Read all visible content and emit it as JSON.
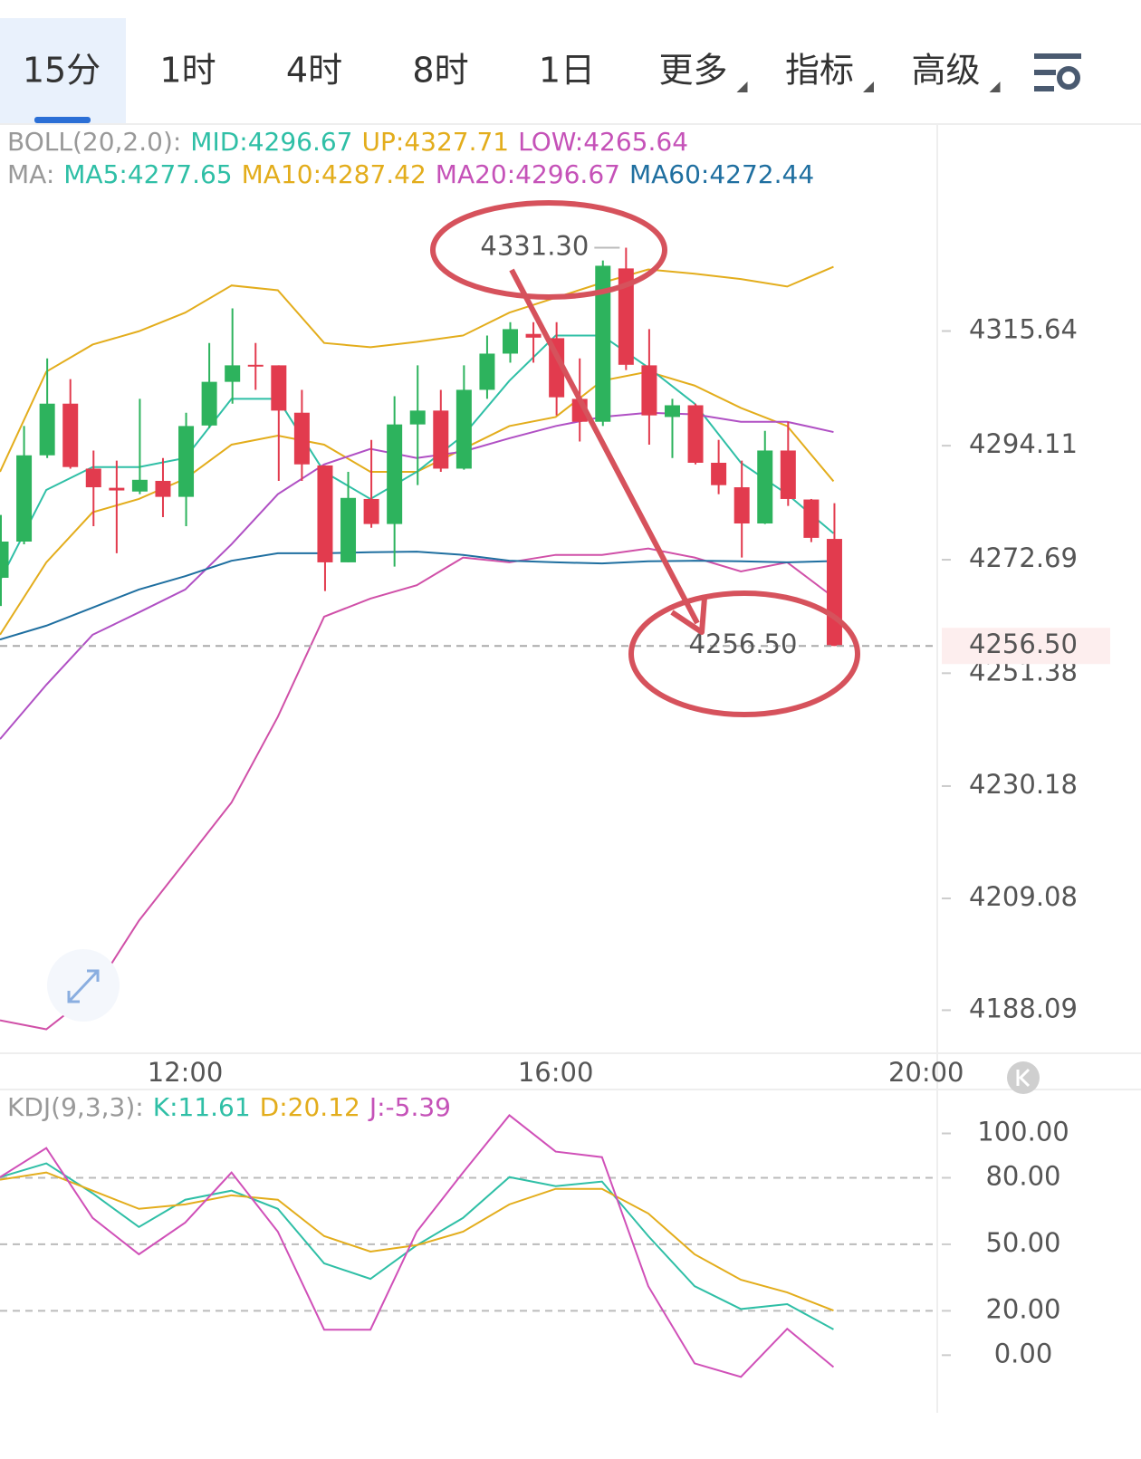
{
  "tabs": [
    "15分",
    "1时",
    "4时",
    "8时",
    "1日",
    "更多",
    "指标",
    "高级"
  ],
  "chart_data": {
    "type": "candlestick",
    "legend_boll": [
      {
        "text": "BOLL(20,2.0):",
        "color": "#999999"
      },
      {
        "text": "MID:4296.67",
        "color": "#2fbfa6"
      },
      {
        "text": "UP:4327.71",
        "color": "#e3ad1c"
      },
      {
        "text": "LOW:4265.64",
        "color": "#c552b8"
      }
    ],
    "legend_ma": [
      {
        "text": "MA:",
        "color": "#999999"
      },
      {
        "text": "MA5:4277.65",
        "color": "#2fbfa6"
      },
      {
        "text": "MA10:4287.42",
        "color": "#e3ad1c"
      },
      {
        "text": "MA20:4296.67",
        "color": "#c552b8"
      },
      {
        "text": "MA60:4272.44",
        "color": "#1f6fa0"
      }
    ],
    "xlim": [
      10,
      20.12
    ],
    "xticks": [
      {
        "value": 12,
        "label": "12:00"
      },
      {
        "value": 16,
        "label": "16:00"
      },
      {
        "value": 20,
        "label": "20:00"
      }
    ],
    "ylim": [
      4180,
      4354
    ],
    "yticks": [
      4315.64,
      4294.11,
      4272.69,
      4251.38,
      4230.18,
      4209.08,
      4188.09
    ],
    "up_color": "#2db35d",
    "down_color": "#e23b4e",
    "x": [
      10,
      10.25,
      10.5,
      10.75,
      11,
      11.25,
      11.5,
      11.75,
      12,
      12.25,
      12.5,
      12.75,
      13,
      13.25,
      13.5,
      13.75,
      14,
      14.25,
      14.5,
      14.75,
      15,
      15.25,
      15.5,
      15.75,
      16,
      16.25,
      16.5,
      16.75,
      17,
      17.25,
      17.5,
      17.75,
      18,
      18.25,
      18.5,
      18.75,
      19
    ],
    "open": [
      4269.3,
      4276.1,
      4292.3,
      4302.0,
      4289.8,
      4286.2,
      4285.5,
      4287.5,
      4284.5,
      4297.9,
      4306.1,
      4309.3,
      4309.2,
      4300.3,
      4290.4,
      4272.2,
      4284.1,
      4279.4,
      4298.1,
      4300.7,
      4289.8,
      4304.6,
      4311.4,
      4315.1,
      4314.3,
      4302.9,
      4298.6,
      4327.4,
      4309.2,
      4299.5,
      4301.7,
      4290.9,
      4286.3,
      4279.5,
      4293.2,
      4284.0,
      4276.6
    ],
    "high": [
      4281.1,
      4297.8,
      4310.5,
      4306.6,
      4293.2,
      4291.3,
      4302.9,
      4291.8,
      4300.3,
      4313.4,
      4319.9,
      4313.4,
      4309.2,
      4304.6,
      4290.4,
      4289.2,
      4295.2,
      4303.4,
      4309.2,
      4304.6,
      4309.2,
      4314.8,
      4317.3,
      4317.3,
      4317.3,
      4310.5,
      4328.9,
      4331.3,
      4316.0,
      4302.9,
      4302.0,
      4295.2,
      4291.3,
      4296.9,
      4298.6,
      4284.1,
      4283.3
    ],
    "low": [
      4264.0,
      4275.6,
      4291.8,
      4289.8,
      4279.0,
      4273.9,
      4285.0,
      4280.7,
      4279.0,
      4297.4,
      4302.0,
      4304.6,
      4287.5,
      4287.5,
      4266.8,
      4272.2,
      4278.7,
      4271.4,
      4286.7,
      4289.2,
      4289.6,
      4302.9,
      4309.7,
      4309.7,
      4299.8,
      4294.9,
      4297.8,
      4308.3,
      4294.3,
      4291.8,
      4290.6,
      4285.0,
      4273.1,
      4279.4,
      4282.8,
      4276.0,
      4256.5
    ],
    "close": [
      4276.1,
      4292.3,
      4302.0,
      4290.1,
      4286.3,
      4285.7,
      4287.7,
      4284.5,
      4297.8,
      4306.1,
      4309.2,
      4309.0,
      4300.7,
      4290.6,
      4272.2,
      4284.3,
      4279.4,
      4298.1,
      4300.7,
      4289.8,
      4304.6,
      4311.4,
      4316.0,
      4314.4,
      4303.2,
      4298.6,
      4327.9,
      4309.3,
      4299.8,
      4301.7,
      4290.9,
      4286.7,
      4279.5,
      4293.2,
      4284.1,
      4276.8,
      4256.5
    ],
    "line_x": [
      10,
      10.5,
      11,
      11.5,
      12,
      12.5,
      13,
      13.5,
      14,
      14.5,
      15,
      15.5,
      16,
      16.5,
      17,
      17.5,
      18,
      18.5,
      19
    ],
    "lines": [
      {
        "color": "#e3ad1c",
        "values": [
          4289.2,
          4308.0,
          4313.1,
          4315.6,
          4319.1,
          4324.2,
          4323.3,
          4313.4,
          4312.6,
          4313.6,
          4314.8,
          4319.1,
          4321.9,
          4324.7,
          4327.2,
          4326.4,
          4325.4,
          4324.0,
          4327.71
        ]
      },
      {
        "color": "#e3ad1c",
        "values": [
          4258.6,
          4272.2,
          4281.6,
          4284.1,
          4287.9,
          4294.3,
          4296.0,
          4294.3,
          4289.2,
          4289.2,
          4293.5,
          4297.8,
          4299.5,
          4306.3,
          4308.0,
          4305.4,
          4301.2,
          4297.8,
          4287.42
        ]
      },
      {
        "color": "#2fbfa6",
        "values": [
          4268.8,
          4285.8,
          4290.1,
          4290.1,
          4291.8,
          4302.9,
          4302.9,
          4289.2,
          4284.1,
          4289.2,
          4296.0,
          4306.3,
          4314.8,
          4314.8,
          4308.8,
          4302.0,
          4290.9,
          4285.0,
          4277.65
        ]
      },
      {
        "color": "#b050c4",
        "values": [
          4239.0,
          4249.2,
          4258.6,
          4262.8,
          4267.1,
          4275.6,
          4285.0,
          4290.6,
          4293.5,
          4291.8,
          4293.0,
          4295.5,
          4297.8,
          4299.5,
          4300.3,
          4300.0,
          4298.6,
          4298.6,
          4296.67
        ]
      },
      {
        "color": "#d050a8",
        "values": [
          4186.2,
          4184.5,
          4191.3,
          4204.9,
          4216.0,
          4227.1,
          4243.2,
          4262.0,
          4265.4,
          4267.9,
          4273.1,
          4272.2,
          4273.6,
          4273.6,
          4274.8,
          4273.1,
          4270.5,
          4272.2,
          4265.64
        ]
      },
      {
        "color": "#1f6fa0",
        "values": [
          4257.7,
          4260.3,
          4263.7,
          4267.1,
          4269.6,
          4272.5,
          4273.9,
          4273.9,
          4274.1,
          4274.2,
          4273.6,
          4272.5,
          4272.2,
          4272.0,
          4272.4,
          4272.5,
          4272.4,
          4272.2,
          4272.44
        ]
      }
    ],
    "max_label": "4331.30",
    "min_label": "4256.50",
    "price_label": "4256.50",
    "kdj": {
      "legend": [
        {
          "text": "KDJ(9,3,3):",
          "color": "#999999"
        },
        {
          "text": "K:11.61",
          "color": "#2fbfa6"
        },
        {
          "text": "D:20.12",
          "color": "#e3ad1c"
        },
        {
          "text": "J:-5.39",
          "color": "#c552b8"
        }
      ],
      "ylim": [
        -26,
        119
      ],
      "yticks": [
        {
          "value": 100,
          "label": "100.00"
        },
        {
          "value": 80,
          "label": "80.00"
        },
        {
          "value": 50,
          "label": "50.00"
        },
        {
          "value": 20,
          "label": "20.00"
        },
        {
          "value": 0,
          "label": "0.00"
        }
      ],
      "guides": [
        80,
        50,
        20
      ],
      "series": [
        {
          "color": "#2fbfa6",
          "values": [
            80.3,
            86.5,
            73.0,
            57.8,
            70.1,
            74.2,
            66.0,
            41.4,
            34.4,
            49.6,
            61.9,
            80.3,
            76.2,
            78.3,
            53.7,
            31.1,
            20.8,
            23.0,
            11.61
          ]
        },
        {
          "color": "#e3ad1c",
          "values": [
            79.1,
            82.4,
            74.2,
            66.0,
            68.0,
            72.1,
            70.1,
            53.7,
            46.7,
            49.6,
            55.7,
            68.0,
            75.0,
            75.0,
            63.9,
            45.5,
            34.0,
            28.3,
            20.12
          ]
        },
        {
          "color": "#d050b8",
          "values": [
            80.3,
            93.4,
            61.9,
            45.5,
            59.8,
            82.4,
            55.7,
            11.5,
            11.5,
            55.7,
            82.4,
            108.2,
            91.8,
            89.3,
            31.1,
            -3.7,
            -9.8,
            11.9,
            -5.39
          ]
        }
      ]
    }
  }
}
